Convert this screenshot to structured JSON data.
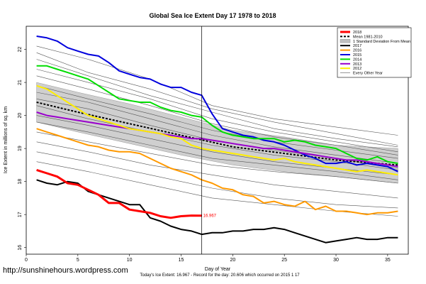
{
  "chart_data": {
    "type": "line",
    "title": "Global Sea Ice Extent Day 17 1978 to 2018",
    "xlabel": "Day of Year",
    "ylabel": "Ice Extent in millions of sq. km",
    "xlim": [
      0,
      37
    ],
    "ylim": [
      15.8,
      22.7
    ],
    "x_ticks": [
      "0",
      "5",
      "10",
      "15",
      "20",
      "25",
      "30",
      "35"
    ],
    "y_ticks": [
      "16",
      "17",
      "18",
      "19",
      "20",
      "21",
      "22"
    ],
    "marker_day": 17,
    "subtitle": "Today's Ice Extent: 16.967  - Record for the day: 20.606 which occurred on 2015 1 17",
    "watermark": "http://sunshinehours.wordpress.com",
    "end_label": "16.967",
    "legend_position": "top-right",
    "legend": [
      {
        "label": "2018",
        "color": "#ff0000",
        "style": "solid"
      },
      {
        "label": "Mean 1981-2010",
        "color": "#000000",
        "style": "dashed"
      },
      {
        "label": "1 Standard Deviation From Mean",
        "color": "#c0c0c0",
        "style": "box"
      },
      {
        "label": "2017",
        "color": "#000000",
        "style": "solid"
      },
      {
        "label": "2016",
        "color": "#ff9900",
        "style": "solid"
      },
      {
        "label": "2015",
        "color": "#0000dd",
        "style": "solid"
      },
      {
        "label": "2014",
        "color": "#00dd00",
        "style": "solid"
      },
      {
        "label": "2013",
        "color": "#9900cc",
        "style": "solid"
      },
      {
        "label": "2012",
        "color": "#ffee00",
        "style": "solid"
      },
      {
        "label": "Every Other Year",
        "color": "#555555",
        "style": "thin"
      }
    ],
    "std_band": {
      "x": [
        1,
        5,
        10,
        15,
        20,
        25,
        30,
        36
      ],
      "upper": [
        21.0,
        20.7,
        20.35,
        19.95,
        19.55,
        19.35,
        19.1,
        19.0
      ],
      "lower": [
        19.8,
        19.5,
        19.15,
        18.8,
        18.5,
        18.3,
        18.15,
        17.95
      ]
    },
    "series": [
      {
        "name": "Mean 1981-2010",
        "color": "#000000",
        "width": 2,
        "dash": "3,2",
        "x": [
          1,
          5,
          10,
          15,
          20,
          25,
          30,
          36
        ],
        "y": [
          20.4,
          20.1,
          19.75,
          19.4,
          19.05,
          18.85,
          18.65,
          18.5
        ]
      },
      {
        "name": "2015",
        "color": "#0000dd",
        "width": 2,
        "x": [
          1,
          2,
          3,
          4,
          5,
          6,
          7,
          8,
          9,
          10,
          11,
          12,
          13,
          14,
          15,
          16,
          17,
          18,
          19,
          20,
          21,
          22,
          23,
          24,
          25,
          26,
          27,
          28,
          29,
          30,
          31,
          32,
          33,
          34,
          35,
          36
        ],
        "y": [
          22.4,
          22.35,
          22.25,
          22.05,
          21.95,
          21.85,
          21.8,
          21.6,
          21.35,
          21.25,
          21.15,
          21.1,
          20.95,
          20.85,
          20.85,
          20.7,
          20.61,
          20.05,
          19.6,
          19.5,
          19.4,
          19.35,
          19.25,
          19.2,
          19.1,
          18.95,
          18.8,
          18.7,
          18.55,
          18.55,
          18.6,
          18.5,
          18.55,
          18.5,
          18.45,
          18.3
        ]
      },
      {
        "name": "2014",
        "color": "#00dd00",
        "width": 2,
        "x": [
          1,
          2,
          3,
          4,
          5,
          6,
          7,
          8,
          9,
          10,
          11,
          12,
          13,
          14,
          15,
          16,
          17,
          18,
          19,
          20,
          21,
          22,
          23,
          24,
          25,
          26,
          27,
          28,
          29,
          30,
          31,
          32,
          33,
          34,
          35,
          36
        ],
        "y": [
          21.5,
          21.5,
          21.4,
          21.3,
          21.2,
          21.1,
          20.9,
          20.7,
          20.5,
          20.45,
          20.4,
          20.4,
          20.25,
          20.15,
          20.1,
          20.0,
          19.95,
          19.7,
          19.5,
          19.4,
          19.35,
          19.3,
          19.3,
          19.3,
          19.2,
          19.25,
          19.2,
          19.1,
          19.05,
          19.0,
          18.85,
          18.7,
          18.65,
          18.75,
          18.6,
          18.55
        ]
      },
      {
        "name": "2013",
        "color": "#9900cc",
        "width": 2,
        "x": [
          1,
          2,
          3,
          4,
          5,
          6,
          7,
          8,
          9,
          10,
          11,
          12,
          13,
          14,
          15,
          16,
          17,
          18,
          19,
          20,
          21,
          22,
          23,
          24,
          25,
          26,
          27,
          28,
          29,
          30,
          31,
          32,
          33,
          34,
          35,
          36
        ],
        "y": [
          20.1,
          20.0,
          19.95,
          19.9,
          19.85,
          19.8,
          19.75,
          19.7,
          19.65,
          19.6,
          19.55,
          19.5,
          19.45,
          19.4,
          19.35,
          19.3,
          19.3,
          19.25,
          19.2,
          19.15,
          19.1,
          19.05,
          19.0,
          19.0,
          18.95,
          18.9,
          18.85,
          18.8,
          18.75,
          18.7,
          18.65,
          18.65,
          18.6,
          18.55,
          18.5,
          18.45
        ]
      },
      {
        "name": "2012",
        "color": "#ffee00",
        "width": 2,
        "x": [
          1,
          2,
          3,
          4,
          5,
          6,
          7,
          8,
          9,
          10,
          11,
          12,
          13,
          14,
          15,
          16,
          17,
          18,
          19,
          20,
          21,
          22,
          23,
          24,
          25,
          26,
          27,
          28,
          29,
          30,
          31,
          32,
          33,
          34,
          35,
          36
        ],
        "y": [
          20.9,
          20.8,
          20.6,
          20.4,
          20.2,
          20.0,
          19.9,
          19.8,
          19.7,
          19.6,
          19.55,
          19.5,
          19.45,
          19.35,
          19.3,
          19.1,
          19.0,
          18.95,
          18.9,
          18.85,
          18.8,
          18.75,
          18.7,
          18.65,
          18.7,
          18.6,
          18.55,
          18.5,
          18.45,
          18.4,
          18.35,
          18.3,
          18.35,
          18.3,
          18.25,
          18.2
        ]
      },
      {
        "name": "2016",
        "color": "#ff9900",
        "width": 2,
        "x": [
          1,
          2,
          3,
          4,
          5,
          6,
          7,
          8,
          9,
          10,
          11,
          12,
          13,
          14,
          15,
          16,
          17,
          18,
          19,
          20,
          21,
          22,
          23,
          24,
          25,
          26,
          27,
          28,
          29,
          30,
          31,
          32,
          33,
          34,
          35,
          36
        ],
        "y": [
          19.6,
          19.5,
          19.4,
          19.3,
          19.2,
          19.1,
          19.05,
          18.95,
          18.9,
          18.9,
          18.85,
          18.7,
          18.55,
          18.4,
          18.3,
          18.2,
          18.05,
          17.95,
          17.8,
          17.75,
          17.6,
          17.55,
          17.35,
          17.4,
          17.3,
          17.25,
          17.4,
          17.15,
          17.25,
          17.1,
          17.1,
          17.05,
          17.0,
          17.05,
          17.05,
          17.1
        ]
      },
      {
        "name": "2017",
        "color": "#000000",
        "width": 2,
        "x": [
          1,
          2,
          3,
          4,
          5,
          6,
          7,
          8,
          9,
          10,
          11,
          12,
          13,
          14,
          15,
          16,
          17,
          18,
          19,
          20,
          21,
          22,
          23,
          24,
          25,
          26,
          27,
          28,
          29,
          30,
          31,
          32,
          33,
          34,
          35,
          36
        ],
        "y": [
          18.05,
          17.95,
          17.9,
          18.0,
          17.95,
          17.7,
          17.6,
          17.5,
          17.4,
          17.3,
          17.3,
          16.9,
          16.8,
          16.65,
          16.55,
          16.5,
          16.4,
          16.45,
          16.45,
          16.5,
          16.5,
          16.55,
          16.55,
          16.6,
          16.55,
          16.45,
          16.35,
          16.25,
          16.15,
          16.2,
          16.25,
          16.3,
          16.25,
          16.25,
          16.3,
          16.3
        ]
      },
      {
        "name": "2018",
        "color": "#ff0000",
        "width": 3,
        "x": [
          1,
          2,
          3,
          4,
          5,
          6,
          7,
          8,
          9,
          10,
          11,
          12,
          13,
          14,
          15,
          16,
          17
        ],
        "y": [
          18.35,
          18.25,
          18.15,
          17.95,
          17.9,
          17.75,
          17.6,
          17.35,
          17.35,
          17.15,
          17.1,
          17.05,
          16.95,
          16.9,
          16.95,
          16.97,
          16.967
        ]
      }
    ],
    "background_series": [
      {
        "x": [
          1,
          6,
          12,
          18,
          24,
          30,
          36
        ],
        "y": [
          22.1,
          21.7,
          21.1,
          20.3,
          19.9,
          19.65,
          19.4
        ]
      },
      {
        "x": [
          1,
          6,
          12,
          18,
          24,
          30,
          36
        ],
        "y": [
          21.9,
          21.3,
          20.8,
          20.2,
          19.8,
          19.45,
          19.1
        ]
      },
      {
        "x": [
          1,
          6,
          12,
          18,
          24,
          30,
          36
        ],
        "y": [
          21.7,
          21.2,
          20.6,
          20.1,
          19.6,
          19.3,
          19.05
        ]
      },
      {
        "x": [
          1,
          6,
          12,
          18,
          24,
          30,
          36
        ],
        "y": [
          21.4,
          21.0,
          20.5,
          19.9,
          19.5,
          19.2,
          18.9
        ]
      },
      {
        "x": [
          1,
          6,
          12,
          18,
          24,
          30,
          36
        ],
        "y": [
          21.2,
          20.8,
          20.3,
          19.75,
          19.35,
          19.1,
          18.8
        ]
      },
      {
        "x": [
          1,
          6,
          12,
          18,
          24,
          30,
          36
        ],
        "y": [
          20.9,
          20.5,
          20.05,
          19.55,
          19.2,
          18.95,
          18.7
        ]
      },
      {
        "x": [
          1,
          6,
          12,
          18,
          24,
          30,
          36
        ],
        "y": [
          20.7,
          20.4,
          19.9,
          19.4,
          19.05,
          18.8,
          18.55
        ]
      },
      {
        "x": [
          1,
          6,
          12,
          18,
          24,
          30,
          36
        ],
        "y": [
          20.5,
          20.2,
          19.7,
          19.25,
          18.95,
          18.7,
          18.4
        ]
      },
      {
        "x": [
          1,
          6,
          12,
          18,
          24,
          30,
          36
        ],
        "y": [
          20.3,
          19.9,
          19.5,
          19.1,
          18.8,
          18.6,
          18.35
        ]
      },
      {
        "x": [
          1,
          6,
          12,
          18,
          24,
          30,
          36
        ],
        "y": [
          20.0,
          19.7,
          19.3,
          18.9,
          18.6,
          18.4,
          18.2
        ]
      },
      {
        "x": [
          1,
          6,
          12,
          18,
          24,
          30,
          36
        ],
        "y": [
          19.8,
          19.5,
          19.1,
          18.7,
          18.5,
          18.3,
          18.05
        ]
      },
      {
        "x": [
          1,
          6,
          12,
          18,
          24,
          30,
          36
        ],
        "y": [
          19.5,
          19.2,
          18.85,
          18.5,
          18.3,
          18.15,
          17.95
        ]
      },
      {
        "x": [
          1,
          6,
          12,
          18,
          24,
          30,
          36
        ],
        "y": [
          19.2,
          18.9,
          18.5,
          18.2,
          17.9,
          17.7,
          17.5
        ]
      },
      {
        "x": [
          1,
          6,
          12,
          18,
          24,
          30,
          36
        ],
        "y": [
          18.9,
          18.6,
          18.2,
          17.8,
          17.5,
          17.3,
          17.2
        ]
      },
      {
        "x": [
          1,
          6,
          12,
          18,
          24,
          30,
          36
        ],
        "y": [
          18.6,
          18.3,
          17.9,
          17.5,
          17.3,
          17.1,
          16.95
        ]
      }
    ]
  }
}
